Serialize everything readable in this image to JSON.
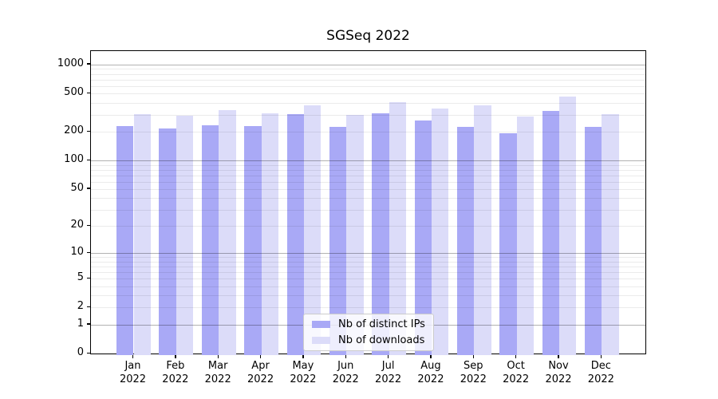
{
  "title": "SGSeq 2022",
  "colors": {
    "distinct_ips": "#a9a9f6",
    "downloads": "#dcdcf9",
    "major_grid": "#b5b5b5",
    "minor_grid": "#ebebeb",
    "legend_border": "#cccccc"
  },
  "chart_data": {
    "type": "bar",
    "title": "SGSeq 2022",
    "categories": [
      "Jan",
      "Feb",
      "Mar",
      "Apr",
      "May",
      "Jun",
      "Jul",
      "Aug",
      "Sep",
      "Oct",
      "Nov",
      "Dec"
    ],
    "x_tick_year": "2022",
    "series": [
      {
        "name": "Nb of distinct IPs",
        "color": "#a9a9f6",
        "values": [
          228,
          218,
          234,
          231,
          303,
          227,
          313,
          262,
          227,
          193,
          328,
          227
        ]
      },
      {
        "name": "Nb of downloads",
        "color": "#dcdcf9",
        "values": [
          306,
          294,
          338,
          314,
          378,
          297,
          404,
          347,
          375,
          288,
          468,
          307
        ]
      }
    ],
    "xlabel": "",
    "ylabel": "",
    "y_scale": "log (log1p, zero shown at baseline)",
    "y_ticks": [
      1000,
      500,
      200,
      100,
      50,
      20,
      10,
      5,
      2,
      1,
      0
    ],
    "ylim": [
      0,
      1385
    ],
    "grid": true,
    "legend_position": "lower-center"
  }
}
